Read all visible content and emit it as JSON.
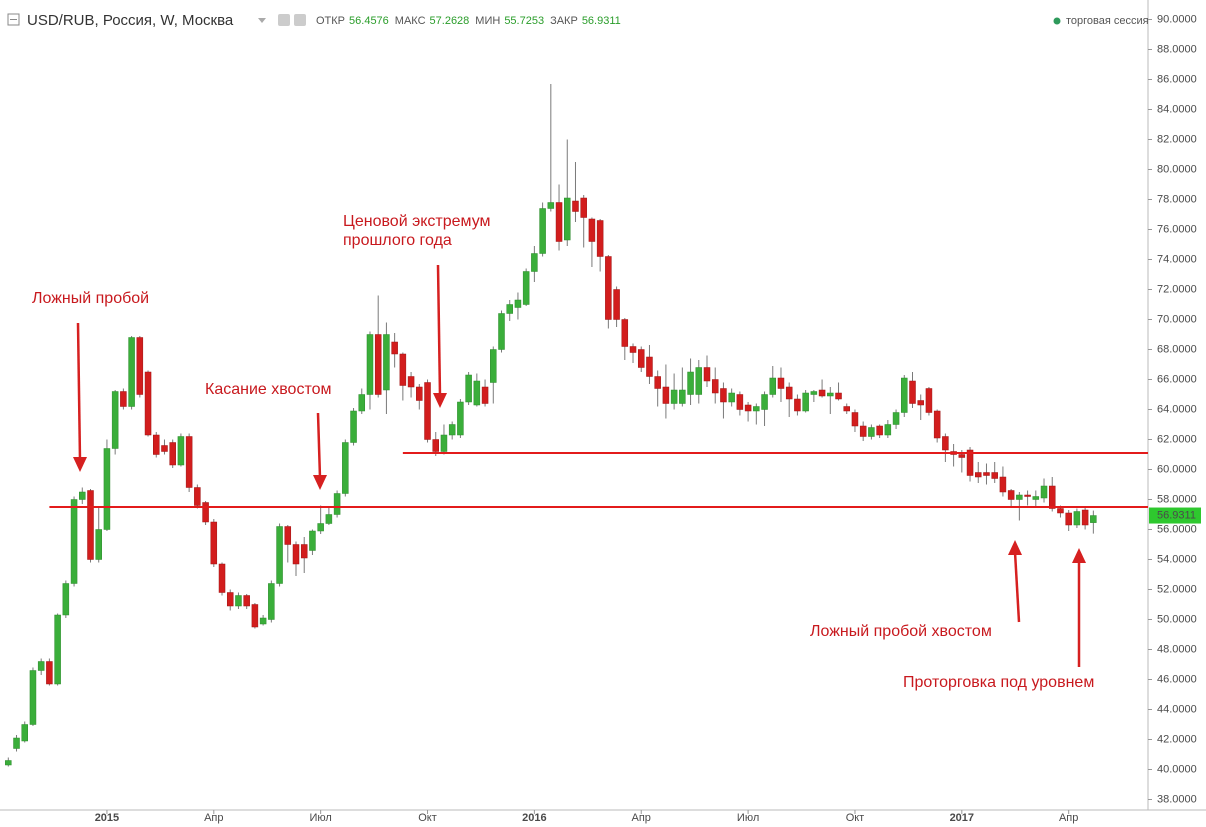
{
  "header": {
    "symbol": "USD/RUB, Россия, W, Москва",
    "open_label": "ОТКР",
    "high_label": "МАКС",
    "low_label": "МИН",
    "close_label": "ЗАКР",
    "session": "торговая сессия"
  },
  "chart_data": {
    "type": "candlestick",
    "up_color": "#3aae3a",
    "down_color": "#d21d1d",
    "wick_color": "#7a7a7a",
    "level_color": "#e31b1b",
    "ylim": [
      37.3,
      91.3
    ],
    "yticks": [
      {
        "value": 38,
        "label": "38.0000"
      },
      {
        "value": 40,
        "label": "40.0000"
      },
      {
        "value": 42,
        "label": "42.0000"
      },
      {
        "value": 44,
        "label": "44.0000"
      },
      {
        "value": 46,
        "label": "46.0000"
      },
      {
        "value": 48,
        "label": "48.0000"
      },
      {
        "value": 50,
        "label": "50.0000"
      },
      {
        "value": 52,
        "label": "52.0000"
      },
      {
        "value": 54,
        "label": "54.0000"
      },
      {
        "value": 56,
        "label": "56.0000"
      },
      {
        "value": 58,
        "label": "58.0000"
      },
      {
        "value": 60,
        "label": "60.0000"
      },
      {
        "value": 62,
        "label": "62.0000"
      },
      {
        "value": 64,
        "label": "64.0000"
      },
      {
        "value": 66,
        "label": "66.0000"
      },
      {
        "value": 68,
        "label": "68.0000"
      },
      {
        "value": 70,
        "label": "70.0000"
      },
      {
        "value": 72,
        "label": "72.0000"
      },
      {
        "value": 74,
        "label": "74.0000"
      },
      {
        "value": 76,
        "label": "76.0000"
      },
      {
        "value": 78,
        "label": "78.0000"
      },
      {
        "value": 80,
        "label": "80.0000"
      },
      {
        "value": 82,
        "label": "82.0000"
      },
      {
        "value": 84,
        "label": "84.0000"
      },
      {
        "value": 86,
        "label": "86.0000"
      },
      {
        "value": 88,
        "label": "88.0000"
      },
      {
        "value": 90,
        "label": "90.0000"
      }
    ],
    "categories": [
      null,
      null,
      null,
      null,
      null,
      null,
      null,
      null,
      null,
      null,
      null,
      null,
      "2015",
      null,
      null,
      null,
      null,
      null,
      null,
      null,
      null,
      null,
      null,
      null,
      null,
      "Апр",
      null,
      null,
      null,
      null,
      null,
      null,
      null,
      null,
      null,
      null,
      null,
      null,
      "Июл",
      null,
      null,
      null,
      null,
      null,
      null,
      null,
      null,
      null,
      null,
      null,
      null,
      "Окт",
      null,
      null,
      null,
      null,
      null,
      null,
      null,
      null,
      null,
      null,
      null,
      null,
      "2016",
      null,
      null,
      null,
      null,
      null,
      null,
      null,
      null,
      null,
      null,
      null,
      null,
      "Апр",
      null,
      null,
      null,
      null,
      null,
      null,
      null,
      null,
      null,
      null,
      null,
      null,
      "Июл",
      null,
      null,
      null,
      null,
      null,
      null,
      null,
      null,
      null,
      null,
      null,
      null,
      "Окт",
      null,
      null,
      null,
      null,
      null,
      null,
      null,
      null,
      null,
      null,
      null,
      null,
      "2017",
      null,
      null,
      null,
      null,
      null,
      null,
      null,
      null,
      null,
      null,
      null,
      null,
      "Апр",
      null,
      null,
      null
    ],
    "open": [
      40.3,
      41.4,
      41.9,
      43.0,
      46.6,
      47.2,
      45.7,
      50.3,
      52.4,
      58.0,
      58.6,
      54.0,
      56.0,
      61.4,
      65.2,
      64.2,
      68.8,
      66.5,
      62.3,
      61.6,
      61.8,
      60.3,
      62.2,
      58.8,
      57.8,
      56.5,
      53.7,
      51.8,
      50.9,
      51.6,
      51.0,
      49.7,
      50.0,
      52.4,
      56.2,
      55.0,
      55.0,
      54.6,
      55.9,
      56.4,
      57.0,
      58.4,
      61.8,
      63.9,
      65.0,
      69.0,
      65.3,
      68.5,
      67.7,
      66.2,
      65.5,
      65.8,
      62.0,
      61.2,
      62.3,
      62.3,
      64.5,
      64.3,
      65.5,
      65.8,
      68.0,
      70.4,
      70.8,
      71.0,
      73.2,
      74.4,
      77.4,
      77.8,
      75.3,
      77.9,
      78.1,
      76.7,
      76.6,
      74.2,
      72.0,
      70.0,
      68.2,
      68.0,
      67.5,
      66.2,
      65.5,
      64.4,
      64.4,
      65.0,
      65.0,
      66.8,
      66.0,
      65.4,
      64.5,
      65.0,
      64.3,
      63.9,
      64.0,
      65.0,
      66.1,
      65.5,
      64.7,
      63.9,
      65.0,
      65.3,
      64.9,
      65.1,
      64.2,
      63.8,
      62.9,
      62.2,
      62.9,
      62.3,
      63.0,
      63.8,
      65.9,
      64.6,
      65.4,
      63.9,
      62.2,
      61.2,
      61.0,
      61.3,
      59.8,
      59.8,
      59.8,
      59.5,
      58.6,
      58.0,
      58.3,
      58.0,
      58.1,
      58.9,
      57.4,
      57.1,
      56.3,
      57.3,
      56.4576
    ],
    "high": [
      40.8,
      42.3,
      43.2,
      46.8,
      47.4,
      47.4,
      50.4,
      52.6,
      58.2,
      58.8,
      58.7,
      57.5,
      62.0,
      65.3,
      65.4,
      68.9,
      68.9,
      66.6,
      62.5,
      62.0,
      62.0,
      62.4,
      62.4,
      59.0,
      57.9,
      56.7,
      53.8,
      52.0,
      51.8,
      51.7,
      51.1,
      50.3,
      52.6,
      56.4,
      56.3,
      55.2,
      55.5,
      56.0,
      57.6,
      57.5,
      58.6,
      62.0,
      64.1,
      65.4,
      69.2,
      71.6,
      69.8,
      69.1,
      67.8,
      66.5,
      65.7,
      66.0,
      62.5,
      63.0,
      63.2,
      64.7,
      66.5,
      66.4,
      66.0,
      68.2,
      70.6,
      71.3,
      71.8,
      73.4,
      74.9,
      77.8,
      85.7,
      79.0,
      82.0,
      80.5,
      78.3,
      76.8,
      76.7,
      74.3,
      72.2,
      70.1,
      68.4,
      68.2,
      68.3,
      66.6,
      67.0,
      66.4,
      66.8,
      67.4,
      67.3,
      67.6,
      66.8,
      65.8,
      65.4,
      65.2,
      64.5,
      64.4,
      65.2,
      66.9,
      66.8,
      65.8,
      65.0,
      65.3,
      65.3,
      66.0,
      65.5,
      65.8,
      64.4,
      64.0,
      63.2,
      63.0,
      63.0,
      63.3,
      64.0,
      66.3,
      66.5,
      65.0,
      65.5,
      64.0,
      62.4,
      61.7,
      61.3,
      61.5,
      60.5,
      60.4,
      60.5,
      60.2,
      58.7,
      58.5,
      58.6,
      58.6,
      59.4,
      59.5,
      57.6,
      57.3,
      57.4,
      57.5,
      57.2628
    ],
    "low": [
      40.2,
      41.2,
      41.8,
      42.9,
      46.3,
      45.6,
      45.6,
      50.1,
      52.2,
      57.7,
      53.8,
      53.8,
      55.9,
      61.0,
      64.0,
      64.0,
      64.8,
      62.2,
      60.8,
      61.0,
      60.1,
      60.2,
      58.5,
      57.4,
      56.3,
      53.5,
      51.6,
      50.6,
      50.7,
      50.7,
      49.4,
      49.6,
      49.8,
      52.2,
      53.8,
      52.9,
      53.1,
      54.3,
      55.7,
      56.3,
      56.8,
      58.2,
      61.6,
      63.7,
      64.0,
      64.8,
      63.7,
      66.8,
      64.6,
      64.8,
      64.0,
      61.8,
      60.9,
      61.0,
      62.0,
      62.1,
      64.3,
      64.2,
      64.2,
      64.4,
      67.8,
      69.9,
      70.0,
      70.9,
      72.5,
      74.2,
      77.2,
      74.6,
      74.9,
      76.5,
      74.8,
      73.5,
      73.2,
      69.4,
      69.5,
      67.3,
      67.1,
      66.5,
      65.7,
      64.2,
      63.4,
      64.0,
      64.2,
      64.3,
      64.4,
      65.5,
      64.4,
      63.4,
      64.2,
      63.6,
      63.2,
      63.0,
      62.9,
      64.8,
      64.5,
      63.5,
      63.6,
      63.8,
      64.5,
      64.8,
      63.7,
      64.6,
      63.7,
      62.5,
      61.9,
      62.0,
      62.1,
      62.1,
      62.7,
      63.5,
      64.1,
      63.3,
      63.6,
      61.8,
      60.5,
      60.2,
      59.8,
      59.2,
      59.1,
      59.0,
      59.1,
      58.2,
      57.5,
      56.6,
      57.6,
      57.5,
      57.8,
      57.2,
      56.8,
      55.9,
      56.1,
      56.0,
      55.7253
    ],
    "close": [
      40.6,
      42.1,
      43.0,
      46.6,
      47.2,
      45.7,
      50.3,
      52.4,
      58.0,
      58.5,
      54.0,
      56.0,
      61.4,
      65.2,
      64.2,
      68.8,
      65.0,
      62.3,
      61.0,
      61.2,
      60.3,
      62.2,
      58.8,
      57.6,
      56.5,
      53.7,
      51.8,
      50.9,
      51.6,
      50.9,
      49.5,
      50.1,
      52.4,
      56.2,
      55.0,
      53.7,
      54.1,
      55.9,
      56.4,
      57.0,
      58.4,
      61.8,
      63.9,
      65.0,
      69.0,
      65.0,
      69.0,
      67.7,
      65.6,
      65.5,
      64.6,
      62.0,
      61.2,
      62.3,
      63.0,
      64.5,
      66.3,
      65.9,
      64.4,
      68.0,
      70.4,
      71.0,
      71.3,
      73.2,
      74.4,
      77.4,
      77.8,
      75.2,
      78.1,
      77.2,
      76.8,
      75.2,
      74.2,
      70.0,
      70.0,
      68.2,
      67.8,
      66.8,
      66.2,
      65.4,
      64.4,
      65.3,
      65.3,
      66.5,
      66.8,
      65.9,
      65.1,
      64.5,
      65.1,
      64.0,
      63.9,
      64.2,
      65.0,
      66.1,
      65.4,
      64.7,
      63.9,
      65.1,
      65.2,
      64.9,
      65.1,
      64.7,
      63.9,
      62.9,
      62.2,
      62.8,
      62.3,
      63.0,
      63.8,
      66.1,
      64.4,
      64.3,
      63.8,
      62.1,
      61.3,
      61.0,
      60.8,
      59.6,
      59.5,
      59.6,
      59.4,
      58.5,
      58.0,
      58.3,
      58.2,
      58.2,
      58.9,
      57.4,
      57.1,
      56.3,
      57.2,
      56.3,
      56.9311
    ],
    "levels": [
      {
        "value": 57.5,
        "start": 5
      },
      {
        "value": 61.1,
        "start": 48
      }
    ],
    "annotations": [
      "Ложный пробой",
      "Касание хвостом",
      "Ценовой экстремум",
      "прошлого года",
      "Ложный пробой хвостом",
      "Проторговка под уровнем"
    ]
  }
}
